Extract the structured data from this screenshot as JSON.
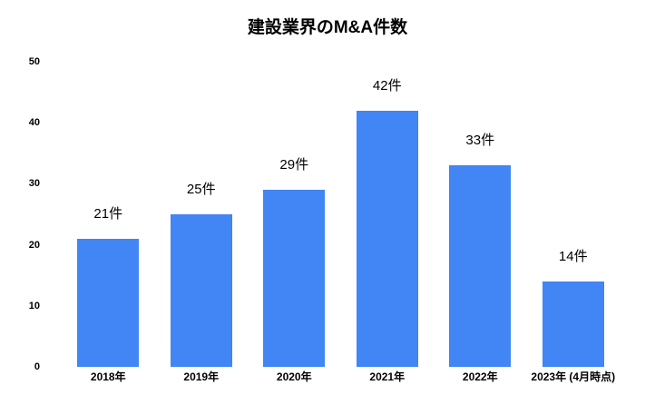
{
  "colors": {
    "background": "#ffffff",
    "bar": "#4285f4",
    "text": "#000000"
  },
  "chart_data": {
    "type": "bar",
    "title": "建設業界のM&A件数",
    "categories": [
      "2018年",
      "2019年",
      "2020年",
      "2021年",
      "2022年",
      "2023年 (4月時点)"
    ],
    "values": [
      21,
      25,
      29,
      42,
      33,
      14
    ],
    "data_labels": [
      "21件",
      "25件",
      "29件",
      "42件",
      "33件",
      "14件"
    ],
    "unit_suffix": "件",
    "y_ticks": [
      0,
      10,
      20,
      30,
      40,
      50
    ],
    "ylim": [
      0,
      50
    ],
    "xlabel": "",
    "ylabel": "",
    "grid": false,
    "legend": "none",
    "bar_color": "#4285f4"
  }
}
